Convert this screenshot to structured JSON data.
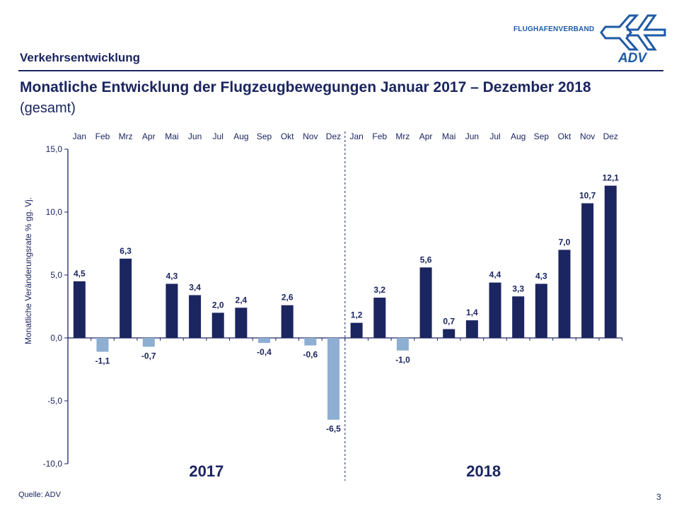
{
  "header": {
    "section": "Verkehrsentwicklung",
    "title": "Monatliche Entwicklung der Flugzeugbewegungen Januar 2017 – Dezember 2018",
    "subtitle": "(gesamt)"
  },
  "logo": {
    "text": "FLUGHAFENVERBAND",
    "mark": "ADV"
  },
  "footer": {
    "source": "Quelle: ADV",
    "page": "3"
  },
  "colors": {
    "positive": "#1b2560",
    "negative": "#8eaed2",
    "text": "#1b2560"
  },
  "chart_data": {
    "type": "bar",
    "categories": [
      "Jan",
      "Feb",
      "Mrz",
      "Apr",
      "Mai",
      "Jun",
      "Jul",
      "Aug",
      "Sep",
      "Okt",
      "Nov",
      "Dez",
      "Jan",
      "Feb",
      "Mrz",
      "Apr",
      "Mai",
      "Jun",
      "Jul",
      "Aug",
      "Sep",
      "Okt",
      "Nov",
      "Dez"
    ],
    "groups": [
      "2017",
      "2018"
    ],
    "values": [
      4.5,
      -1.1,
      6.3,
      -0.7,
      4.3,
      3.4,
      2.0,
      2.4,
      -0.4,
      2.6,
      -0.6,
      -6.5,
      1.2,
      3.2,
      -1.0,
      5.6,
      0.7,
      1.4,
      4.4,
      3.3,
      4.3,
      7.0,
      10.7,
      12.1
    ],
    "labels": [
      "4,5",
      "-1,1",
      "6,3",
      "-0,7",
      "4,3",
      "3,4",
      "2,0",
      "2,4",
      "-0,4",
      "2,6",
      "-0,6",
      "-6,5",
      "1,2",
      "3,2",
      "-1,0",
      "5,6",
      "0,7",
      "1,4",
      "4,4",
      "3,3",
      "4,3",
      "7,0",
      "10,7",
      "12,1"
    ],
    "ylabel": "Monatliche Veränderungsrate % gg. Vj.",
    "ylim": [
      -10,
      15
    ],
    "yticks": [
      "-10,0",
      "-5,0",
      "0,0",
      "5,0",
      "10,0",
      "15,0"
    ],
    "ytick_values": [
      -10,
      -5,
      0,
      5,
      10,
      15
    ],
    "grid": false,
    "legend": "none"
  }
}
